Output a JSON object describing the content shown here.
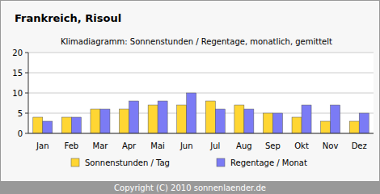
{
  "chart_data": {
    "type": "bar",
    "title": "Frankreich, Risoul",
    "subtitle": "Klimadiagramm: Sonnenstunden / Regentage, monatlich, gemittelt",
    "categories": [
      "Jan",
      "Feb",
      "Mar",
      "Apr",
      "Mai",
      "Jun",
      "Jul",
      "Aug",
      "Sep",
      "Okt",
      "Nov",
      "Dez"
    ],
    "series": [
      {
        "name": "Sonnenstunden / Tag",
        "color": "#ffd633",
        "values": [
          4,
          4,
          6,
          6,
          7,
          7,
          8,
          7,
          5,
          4,
          3,
          3
        ]
      },
      {
        "name": "Regentage / Monat",
        "color": "#7b7bf5",
        "values": [
          3,
          4,
          6,
          8,
          8,
          10,
          6,
          6,
          5,
          7,
          7,
          5
        ]
      }
    ],
    "ylim": [
      0,
      20
    ],
    "yticks": [
      0,
      5,
      10,
      15,
      20
    ],
    "grid": true,
    "legend": "bottom",
    "footer": "Copyright (C) 2010 sonnenlaender.de"
  }
}
